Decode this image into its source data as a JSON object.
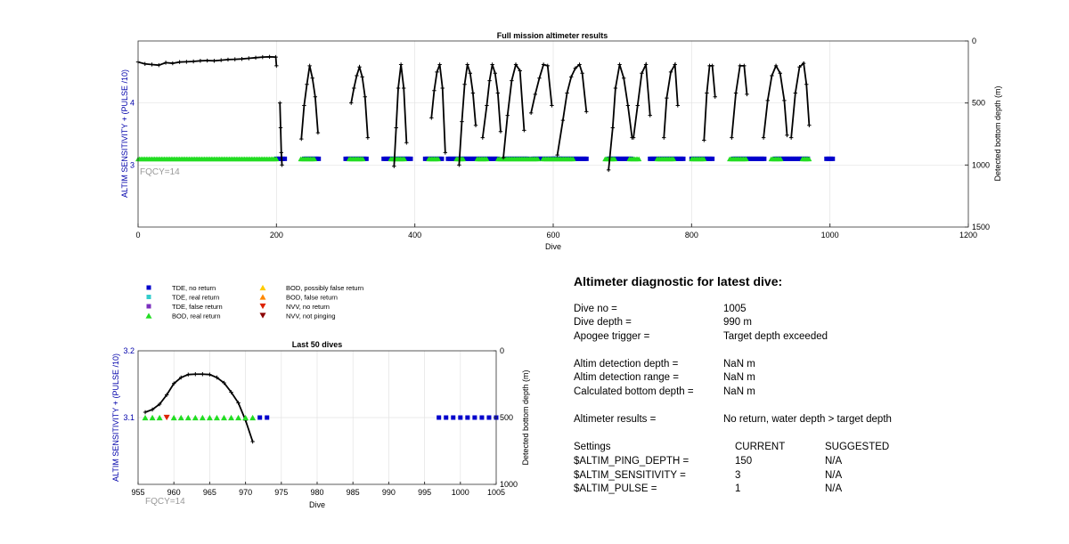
{
  "chart_data": [
    {
      "type": "scatter",
      "title": "Full mission altimeter results",
      "xlabel": "Dive",
      "ylabel": "ALTIM SENSITIVITY + (PULSE /10)",
      "y2label": "Detected bottom depth (m)",
      "xlim": [
        0,
        1200
      ],
      "ylim": [
        2,
        5
      ],
      "y2lim": [
        0,
        1500
      ],
      "y2_reversed": true,
      "x_ticks": [
        "0",
        "200",
        "400",
        "600",
        "800",
        "1000",
        "1200"
      ],
      "y_ticks": [
        "3",
        "4"
      ],
      "y2_ticks": [
        "0",
        "500",
        "1000",
        "1500"
      ],
      "grid": true,
      "annotation": "FQCY=14",
      "tde_no_return_level": 3.1,
      "tde_no_return_dives": [
        [
          200,
          212
        ],
        [
          240,
          262
        ],
        [
          300,
          330
        ],
        [
          355,
          395
        ],
        [
          415,
          440
        ],
        [
          448,
          520
        ],
        [
          530,
          565
        ],
        [
          570,
          610
        ],
        [
          600,
          650
        ],
        [
          680,
          715
        ],
        [
          740,
          790
        ],
        [
          800,
          830
        ],
        [
          860,
          905
        ],
        [
          920,
          970
        ],
        [
          995,
          1005
        ]
      ],
      "bod_real_return_level": 3.1,
      "bod_real_return_dives": [
        [
          0,
          200
        ],
        [
          235,
          255
        ],
        [
          305,
          325
        ],
        [
          365,
          385
        ],
        [
          420,
          435
        ],
        [
          460,
          470
        ],
        [
          490,
          505
        ],
        [
          520,
          548
        ],
        [
          550,
          578
        ],
        [
          585,
          630
        ],
        [
          675,
          690
        ],
        [
          710,
          725
        ],
        [
          750,
          775
        ],
        [
          800,
          818
        ],
        [
          855,
          880
        ],
        [
          915,
          930
        ],
        [
          960,
          970
        ]
      ],
      "bottom_depth_series": [
        {
          "x": [
            0,
            10,
            20,
            30,
            40,
            50,
            60,
            70,
            80,
            90,
            100,
            110,
            120,
            130,
            140,
            150,
            160,
            170,
            180,
            190,
            199,
            200
          ],
          "y": [
            170,
            185,
            190,
            195,
            175,
            180,
            170,
            168,
            165,
            160,
            158,
            160,
            155,
            150,
            148,
            145,
            140,
            135,
            130,
            128,
            130,
            200
          ]
        },
        {
          "x": [
            205,
            206,
            207,
            208
          ],
          "y": [
            500,
            700,
            900,
            1000
          ]
        },
        {
          "x": [
            236,
            240,
            244,
            248,
            252,
            256,
            260
          ],
          "y": [
            790,
            520,
            350,
            200,
            300,
            450,
            740
          ]
        },
        {
          "x": [
            308,
            312,
            316,
            320,
            324,
            328,
            332
          ],
          "y": [
            500,
            380,
            280,
            210,
            290,
            450,
            780
          ]
        },
        {
          "x": [
            370,
            373,
            376,
            380,
            384,
            388
          ],
          "y": [
            1010,
            700,
            380,
            190,
            380,
            820
          ]
        },
        {
          "x": [
            424,
            428,
            432,
            436,
            440,
            444
          ],
          "y": [
            620,
            400,
            250,
            190,
            380,
            900
          ]
        },
        {
          "x": [
            464,
            468,
            472,
            476,
            480,
            484,
            488
          ],
          "y": [
            1000,
            650,
            350,
            190,
            260,
            420,
            680
          ]
        },
        {
          "x": [
            498,
            504,
            508,
            512,
            516,
            520,
            524
          ],
          "y": [
            780,
            520,
            320,
            190,
            260,
            420,
            730
          ]
        },
        {
          "x": [
            528,
            534,
            540,
            546,
            552,
            558
          ],
          "y": [
            940,
            600,
            320,
            190,
            240,
            720
          ]
        },
        {
          "x": [
            568,
            574,
            580,
            586,
            592,
            598
          ],
          "y": [
            580,
            430,
            300,
            190,
            200,
            520
          ]
        },
        {
          "x": [
            606,
            614,
            620,
            626,
            632,
            638,
            642,
            648
          ],
          "y": [
            920,
            640,
            420,
            290,
            220,
            190,
            260,
            570
          ]
        },
        {
          "x": [
            680,
            686,
            690,
            696,
            702,
            708,
            714
          ],
          "y": [
            1040,
            700,
            380,
            190,
            300,
            520,
            780
          ]
        },
        {
          "x": [
            716,
            722,
            728,
            734,
            740
          ],
          "y": [
            780,
            520,
            260,
            190,
            600
          ]
        },
        {
          "x": [
            760,
            764,
            770,
            776,
            780
          ],
          "y": [
            780,
            460,
            250,
            190,
            520
          ]
        },
        {
          "x": [
            818,
            822,
            826,
            830,
            834
          ],
          "y": [
            800,
            420,
            200,
            200,
            450
          ]
        },
        {
          "x": [
            858,
            864,
            870,
            876,
            880
          ],
          "y": [
            780,
            420,
            200,
            200,
            430
          ]
        },
        {
          "x": [
            904,
            910,
            916,
            922,
            928,
            934,
            938
          ],
          "y": [
            780,
            480,
            280,
            200,
            260,
            480,
            760
          ]
        },
        {
          "x": [
            944,
            950,
            956,
            962,
            966,
            970
          ],
          "y": [
            780,
            420,
            210,
            180,
            350,
            680
          ]
        }
      ]
    },
    {
      "type": "scatter",
      "title": "Last 50 dives",
      "xlabel": "Dive",
      "ylabel": "ALTIM SENSITIVITY + (PULSE /10)",
      "y2label": "Detected bottom depth (m)",
      "xlim": [
        955,
        1005
      ],
      "ylim": [
        3,
        3.2
      ],
      "y2lim": [
        0,
        1000
      ],
      "y2_reversed": true,
      "x_ticks": [
        "955",
        "960",
        "965",
        "970",
        "975",
        "980",
        "985",
        "990",
        "995",
        "1000",
        "1005"
      ],
      "y_ticks": [
        "3.1",
        "3.2"
      ],
      "y2_ticks": [
        "0",
        "500",
        "1000"
      ],
      "grid": true,
      "annotation": "FQCY=14",
      "tde_no_return": [
        {
          "x": 972,
          "y": 3.1
        },
        {
          "x": 973,
          "y": 3.1
        },
        {
          "x": 997,
          "y": 3.1
        },
        {
          "x": 998,
          "y": 3.1
        },
        {
          "x": 999,
          "y": 3.1
        },
        {
          "x": 1000,
          "y": 3.1
        },
        {
          "x": 1001,
          "y": 3.1
        },
        {
          "x": 1002,
          "y": 3.1
        },
        {
          "x": 1003,
          "y": 3.1
        },
        {
          "x": 1004,
          "y": 3.1
        },
        {
          "x": 1005,
          "y": 3.1
        }
      ],
      "bod_real_return": [
        {
          "x": 956,
          "y": 3.1
        },
        {
          "x": 957,
          "y": 3.1
        },
        {
          "x": 958,
          "y": 3.1
        },
        {
          "x": 960,
          "y": 3.1
        },
        {
          "x": 961,
          "y": 3.1
        },
        {
          "x": 962,
          "y": 3.1
        },
        {
          "x": 963,
          "y": 3.1
        },
        {
          "x": 964,
          "y": 3.1
        },
        {
          "x": 965,
          "y": 3.1
        },
        {
          "x": 966,
          "y": 3.1
        },
        {
          "x": 967,
          "y": 3.1
        },
        {
          "x": 968,
          "y": 3.1
        },
        {
          "x": 969,
          "y": 3.1
        },
        {
          "x": 970,
          "y": 3.1
        },
        {
          "x": 971,
          "y": 3.1
        }
      ],
      "nvv_no_return": [
        {
          "x": 959,
          "y": 3.1
        }
      ],
      "bottom_depth": {
        "x": [
          956,
          957,
          958,
          959,
          960,
          961,
          962,
          963,
          964,
          965,
          966,
          967,
          968,
          969,
          970,
          971
        ],
        "y": [
          460,
          440,
          400,
          330,
          245,
          200,
          178,
          175,
          175,
          178,
          200,
          240,
          310,
          390,
          520,
          680
        ]
      }
    }
  ],
  "legend": [
    {
      "label": "TDE, no return",
      "marker": "square",
      "color": "#0000cc"
    },
    {
      "label": "TDE, real return",
      "marker": "square",
      "color": "#33cccc"
    },
    {
      "label": "TDE, false return",
      "marker": "square",
      "color": "#7b2fbe"
    },
    {
      "label": "BOD, real return",
      "marker": "triangle-up",
      "color": "#22dd22"
    },
    {
      "label": "BOD, possibly false return",
      "marker": "triangle-up",
      "color": "#ffcc00"
    },
    {
      "label": "BOD, false return",
      "marker": "triangle-up",
      "color": "#ff8800"
    },
    {
      "label": "NVV, no return",
      "marker": "triangle-down",
      "color": "#dd2200"
    },
    {
      "label": "NVV, not pinging",
      "marker": "triangle-down",
      "color": "#8b0000"
    }
  ],
  "colors": {
    "axis_ylabel": "#0000aa",
    "annotation": "#999999",
    "depth_line": "#000000",
    "grid": "#e3e3e3"
  },
  "diagnostic": {
    "title": "Altimeter diagnostic for latest dive:",
    "rows": [
      {
        "label": "Dive no =",
        "value": "1005"
      },
      {
        "label": "Dive depth =",
        "value": "990 m"
      },
      {
        "label": "Apogee trigger =",
        "value": "Target depth exceeded"
      },
      {
        "label": "Altim detection depth =",
        "value": "NaN m"
      },
      {
        "label": "Altim detection range =",
        "value": "NaN m"
      },
      {
        "label": "Calculated bottom depth =",
        "value": "NaN m"
      },
      {
        "label": "Altimeter results =",
        "value": "No return, water depth > target depth"
      }
    ],
    "settings_header": {
      "label": "Settings",
      "current": "CURRENT",
      "suggested": "SUGGESTED"
    },
    "settings": [
      {
        "label": "$ALTIM_PING_DEPTH =",
        "current": "150",
        "suggested": "N/A"
      },
      {
        "label": "$ALTIM_SENSITIVITY =",
        "current": "3",
        "suggested": "N/A"
      },
      {
        "label": "$ALTIM_PULSE =",
        "current": "1",
        "suggested": "N/A"
      }
    ]
  }
}
